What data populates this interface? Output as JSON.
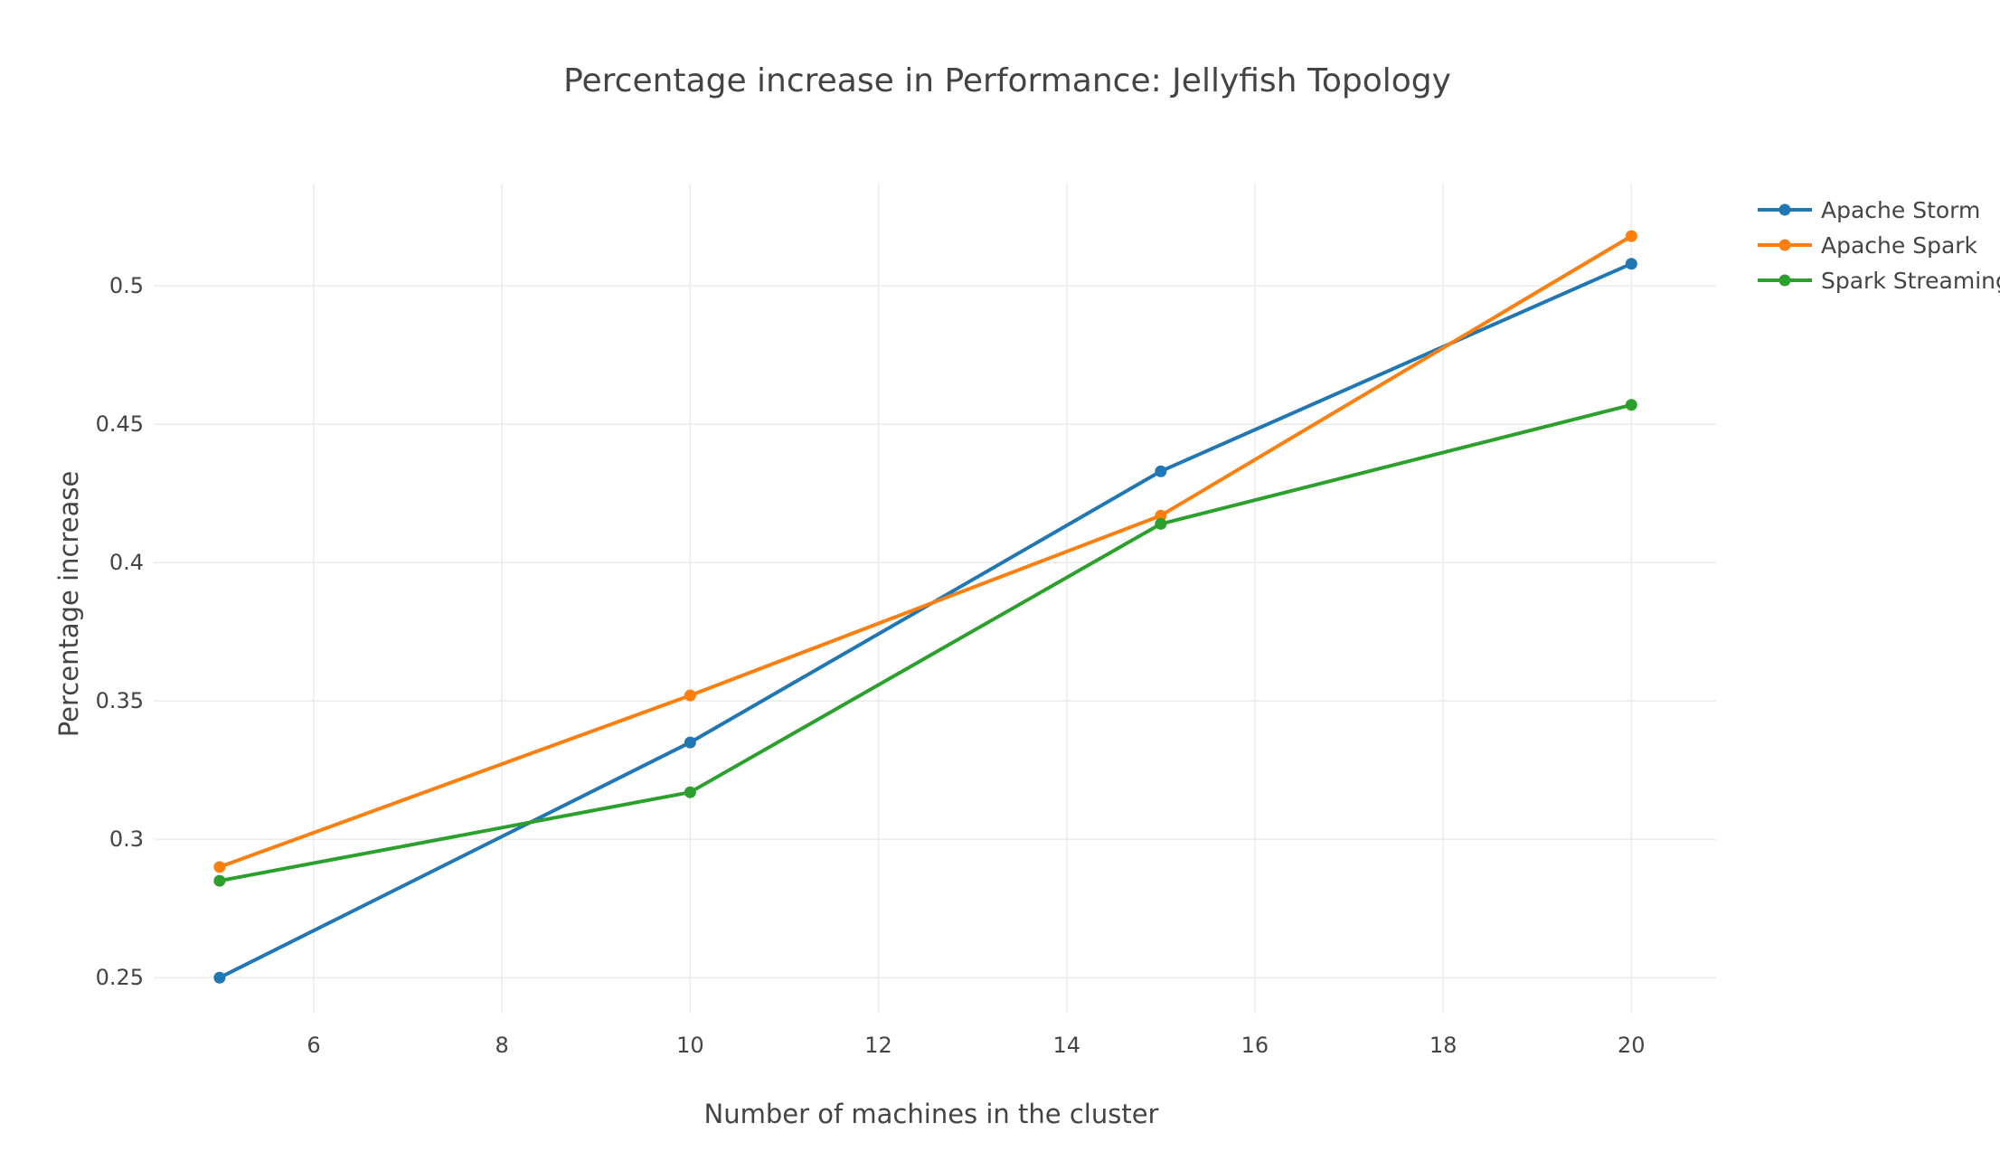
{
  "chart_data": {
    "type": "line",
    "title": "Percentage increase in Performance: Jellyfish Topology",
    "xlabel": "Number of machines in the cluster",
    "ylabel": "Percentage increase",
    "x": [
      5,
      10,
      15,
      20
    ],
    "xlim": [
      4.3,
      20.9
    ],
    "ylim": [
      0.237,
      0.537
    ],
    "xticks": [
      6,
      8,
      10,
      12,
      14,
      16,
      18,
      20
    ],
    "xtick_labels": [
      "6",
      "8",
      "10",
      "12",
      "14",
      "16",
      "18",
      "20"
    ],
    "yticks": [
      0.25,
      0.3,
      0.35,
      0.4,
      0.45,
      0.5
    ],
    "ytick_labels": [
      "0.25",
      "0.3",
      "0.35",
      "0.4",
      "0.45",
      "0.5"
    ],
    "grid": true,
    "legend_position": "top-right",
    "series": [
      {
        "name": "Apache Storm",
        "color": "#1f77b4",
        "values": [
          0.25,
          0.335,
          0.433,
          0.508
        ]
      },
      {
        "name": "Apache Spark",
        "color": "#ff7f0e",
        "values": [
          0.29,
          0.352,
          0.417,
          0.518
        ]
      },
      {
        "name": "Spark Streaming",
        "color": "#2ca02c",
        "values": [
          0.285,
          0.317,
          0.414,
          0.457
        ]
      }
    ]
  }
}
